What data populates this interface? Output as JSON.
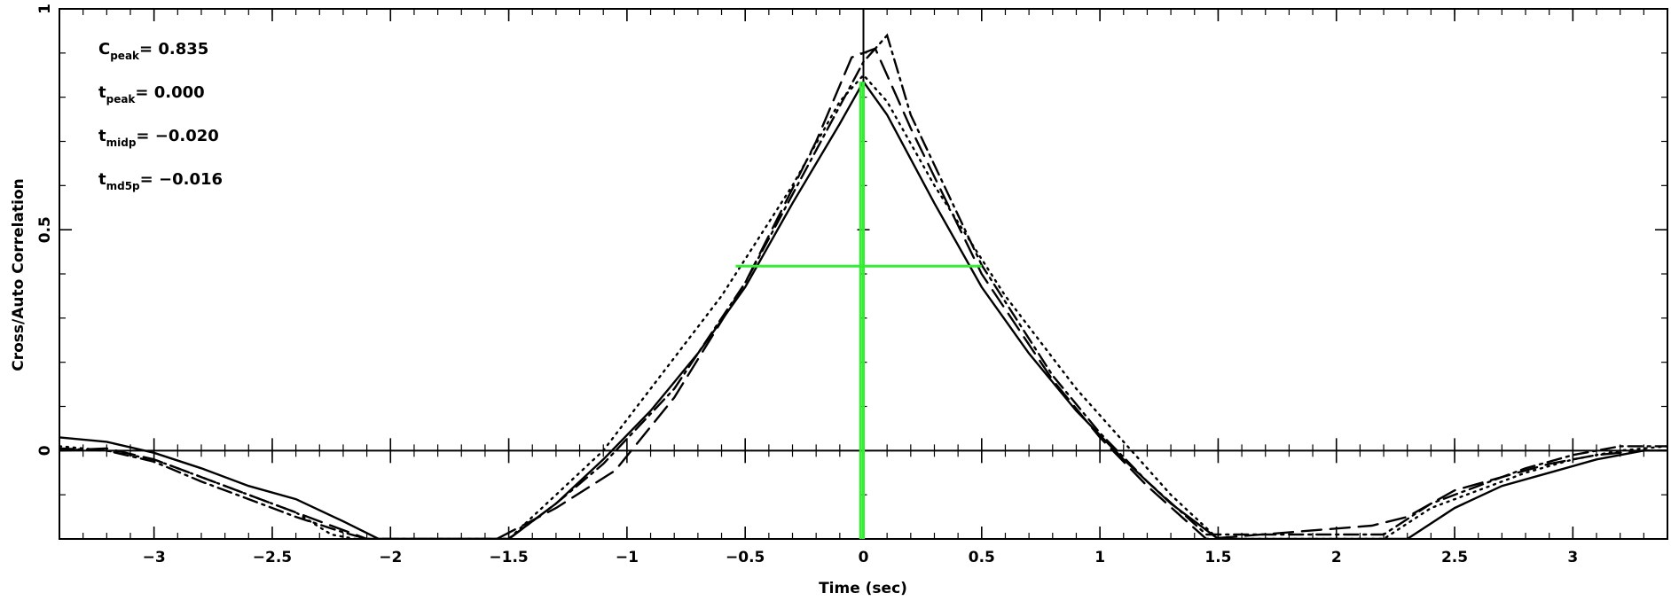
{
  "chart_data": {
    "type": "line",
    "xlabel": "Time (sec)",
    "ylabel": "Cross/Auto Correlation",
    "xlim": [
      -3.4,
      3.4
    ],
    "ylim": [
      -0.2,
      1.0
    ],
    "x_ticks": [
      -3,
      -2.5,
      -2,
      -1.5,
      -1,
      -0.5,
      0,
      0.5,
      1,
      1.5,
      2,
      2.5,
      3
    ],
    "x_tick_labels": [
      "−3",
      "−2.5",
      "−2",
      "−1.5",
      "−1",
      "−0.5",
      "0",
      "0.5",
      "1",
      "1.5",
      "2",
      "2.5",
      "3"
    ],
    "y_ticks": [
      0,
      0.5,
      1
    ],
    "y_tick_labels": [
      "0",
      "0.5",
      "1"
    ],
    "annotations": [
      {
        "symbol": "C",
        "sub": "peak",
        "value": "0.835"
      },
      {
        "symbol": "t",
        "sub": "peak",
        "value": "0.000"
      },
      {
        "symbol": "t",
        "sub": "midp",
        "value": "−0.020"
      },
      {
        "symbol": "t",
        "sub": "md5p",
        "value": "−0.016"
      }
    ],
    "series": [
      {
        "style": "solid",
        "color": "#000000",
        "x": [
          -3.4,
          -3.2,
          -3.0,
          -2.8,
          -2.6,
          -2.4,
          -2.2,
          -2.05,
          -1.5,
          -1.3,
          -1.1,
          -0.9,
          -0.7,
          -0.5,
          -0.3,
          -0.1,
          0.0,
          0.1,
          0.3,
          0.5,
          0.7,
          0.9,
          1.1,
          1.3,
          1.5,
          2.3,
          2.5,
          2.7,
          2.9,
          3.1,
          3.3,
          3.4
        ],
        "y": [
          0.03,
          0.02,
          -0.005,
          -0.04,
          -0.08,
          -0.11,
          -0.16,
          -0.205,
          -0.205,
          -0.12,
          -0.02,
          0.09,
          0.22,
          0.37,
          0.56,
          0.74,
          0.835,
          0.76,
          0.56,
          0.37,
          0.22,
          0.09,
          -0.02,
          -0.12,
          -0.205,
          -0.205,
          -0.13,
          -0.08,
          -0.05,
          -0.02,
          0.0,
          0.0
        ]
      },
      {
        "style": "dashed",
        "color": "#000000",
        "x": [
          -3.4,
          -3.2,
          -3.0,
          -2.8,
          -2.6,
          -2.4,
          -2.2,
          -2.1,
          -1.55,
          -1.3,
          -1.05,
          -0.8,
          -0.5,
          -0.2,
          -0.05,
          0.05,
          0.2,
          0.5,
          0.8,
          1.0,
          1.2,
          1.45,
          2.15,
          2.3,
          2.5,
          2.7,
          2.9,
          3.1,
          3.3,
          3.4
        ],
        "y": [
          0.0,
          0.005,
          -0.02,
          -0.06,
          -0.1,
          -0.14,
          -0.18,
          -0.205,
          -0.205,
          -0.13,
          -0.045,
          0.12,
          0.38,
          0.7,
          0.89,
          0.91,
          0.73,
          0.4,
          0.16,
          0.03,
          -0.08,
          -0.2,
          -0.17,
          -0.15,
          -0.09,
          -0.06,
          -0.03,
          -0.01,
          0.0,
          0.0
        ]
      },
      {
        "style": "dotted",
        "color": "#000000",
        "x": [
          -3.4,
          -3.2,
          -3.0,
          -2.8,
          -2.6,
          -2.4,
          -2.25,
          -2.15,
          -1.5,
          -1.3,
          -1.1,
          -0.9,
          -0.6,
          -0.3,
          -0.1,
          0.0,
          0.1,
          0.3,
          0.6,
          0.9,
          1.1,
          1.3,
          1.5,
          2.2,
          2.4,
          2.6,
          2.8,
          3.0,
          3.2,
          3.4
        ],
        "y": [
          0.01,
          0.0,
          -0.02,
          -0.06,
          -0.1,
          -0.14,
          -0.19,
          -0.205,
          -0.205,
          -0.1,
          0.0,
          0.14,
          0.35,
          0.6,
          0.79,
          0.85,
          0.79,
          0.6,
          0.35,
          0.14,
          0.02,
          -0.1,
          -0.205,
          -0.205,
          -0.13,
          -0.09,
          -0.05,
          -0.02,
          0.0,
          0.01
        ]
      },
      {
        "style": "dash-dot",
        "color": "#000000",
        "x": [
          -3.4,
          -3.2,
          -3.0,
          -2.8,
          -2.6,
          -2.4,
          -2.2,
          -2.1,
          -1.5,
          -1.3,
          -1.1,
          -0.8,
          -0.5,
          -0.2,
          0.0,
          0.1,
          0.2,
          0.5,
          0.8,
          1.0,
          1.2,
          1.45,
          2.2,
          2.4,
          2.6,
          2.8,
          3.0,
          3.2,
          3.4
        ],
        "y": [
          0.005,
          0.0,
          -0.025,
          -0.07,
          -0.11,
          -0.15,
          -0.185,
          -0.205,
          -0.205,
          -0.12,
          -0.03,
          0.14,
          0.38,
          0.68,
          0.88,
          0.94,
          0.76,
          0.42,
          0.17,
          0.04,
          -0.07,
          -0.19,
          -0.19,
          -0.12,
          -0.08,
          -0.04,
          -0.01,
          0.01,
          0.01
        ]
      }
    ],
    "markers": {
      "color": "#33ee33",
      "vertical_x": [
        -0.012,
        0.0
      ],
      "vertical_ymax": 0.835,
      "horizontal": {
        "x1": -0.54,
        "x2": 0.5,
        "y": 0.4175
      }
    }
  }
}
